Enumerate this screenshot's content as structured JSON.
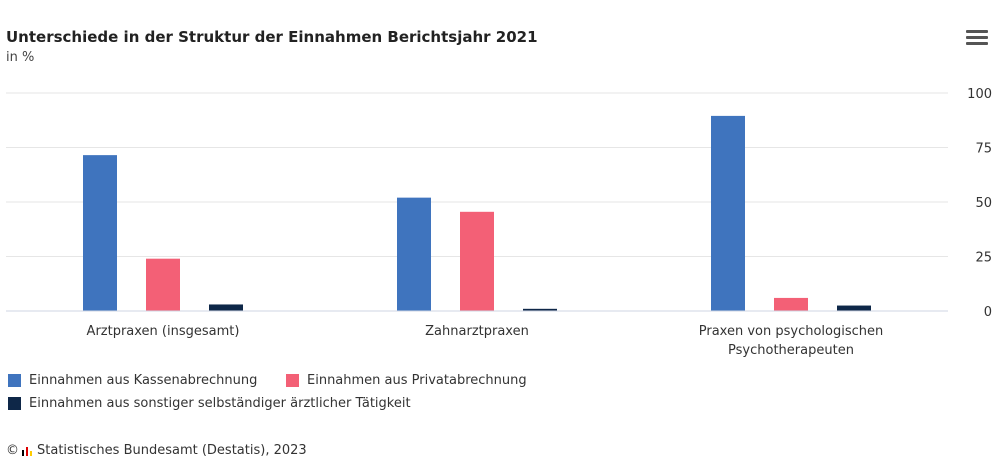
{
  "header": {
    "menu_icon": "hamburger-menu-icon"
  },
  "chart_data": {
    "type": "bar",
    "title": "Unterschiede in der Struktur der Einnahmen Berichtsjahr 2021",
    "subtitle": "in %",
    "categories": [
      [
        "Arztpraxen (insgesamt)"
      ],
      [
        "Zahnarztpraxen"
      ],
      [
        "Praxen von psychologischen",
        "Psychotherapeuten"
      ]
    ],
    "series": [
      {
        "name": "Einnahmen aus Kassenabrechnung",
        "color": "#3f74be",
        "values": [
          71.5,
          52,
          89.5
        ]
      },
      {
        "name": "Einnahmen aus Privatabrechnung",
        "color": "#f36076",
        "values": [
          24,
          45.5,
          6
        ]
      },
      {
        "name": "Einnahmen aus sonstiger selbständiger ärztlicher Tätigkeit",
        "color": "#0e2748",
        "values": [
          3,
          1,
          2.5
        ]
      }
    ],
    "yticks": [
      "0",
      "25",
      "50",
      "75",
      "100"
    ],
    "ylim": [
      0,
      100
    ],
    "y_axis_side": "right",
    "grid": true,
    "legend_position": "bottom-left"
  },
  "footer": {
    "copyright": "©",
    "source_text": "Statistisches Bundesamt (Destatis), 2023"
  }
}
